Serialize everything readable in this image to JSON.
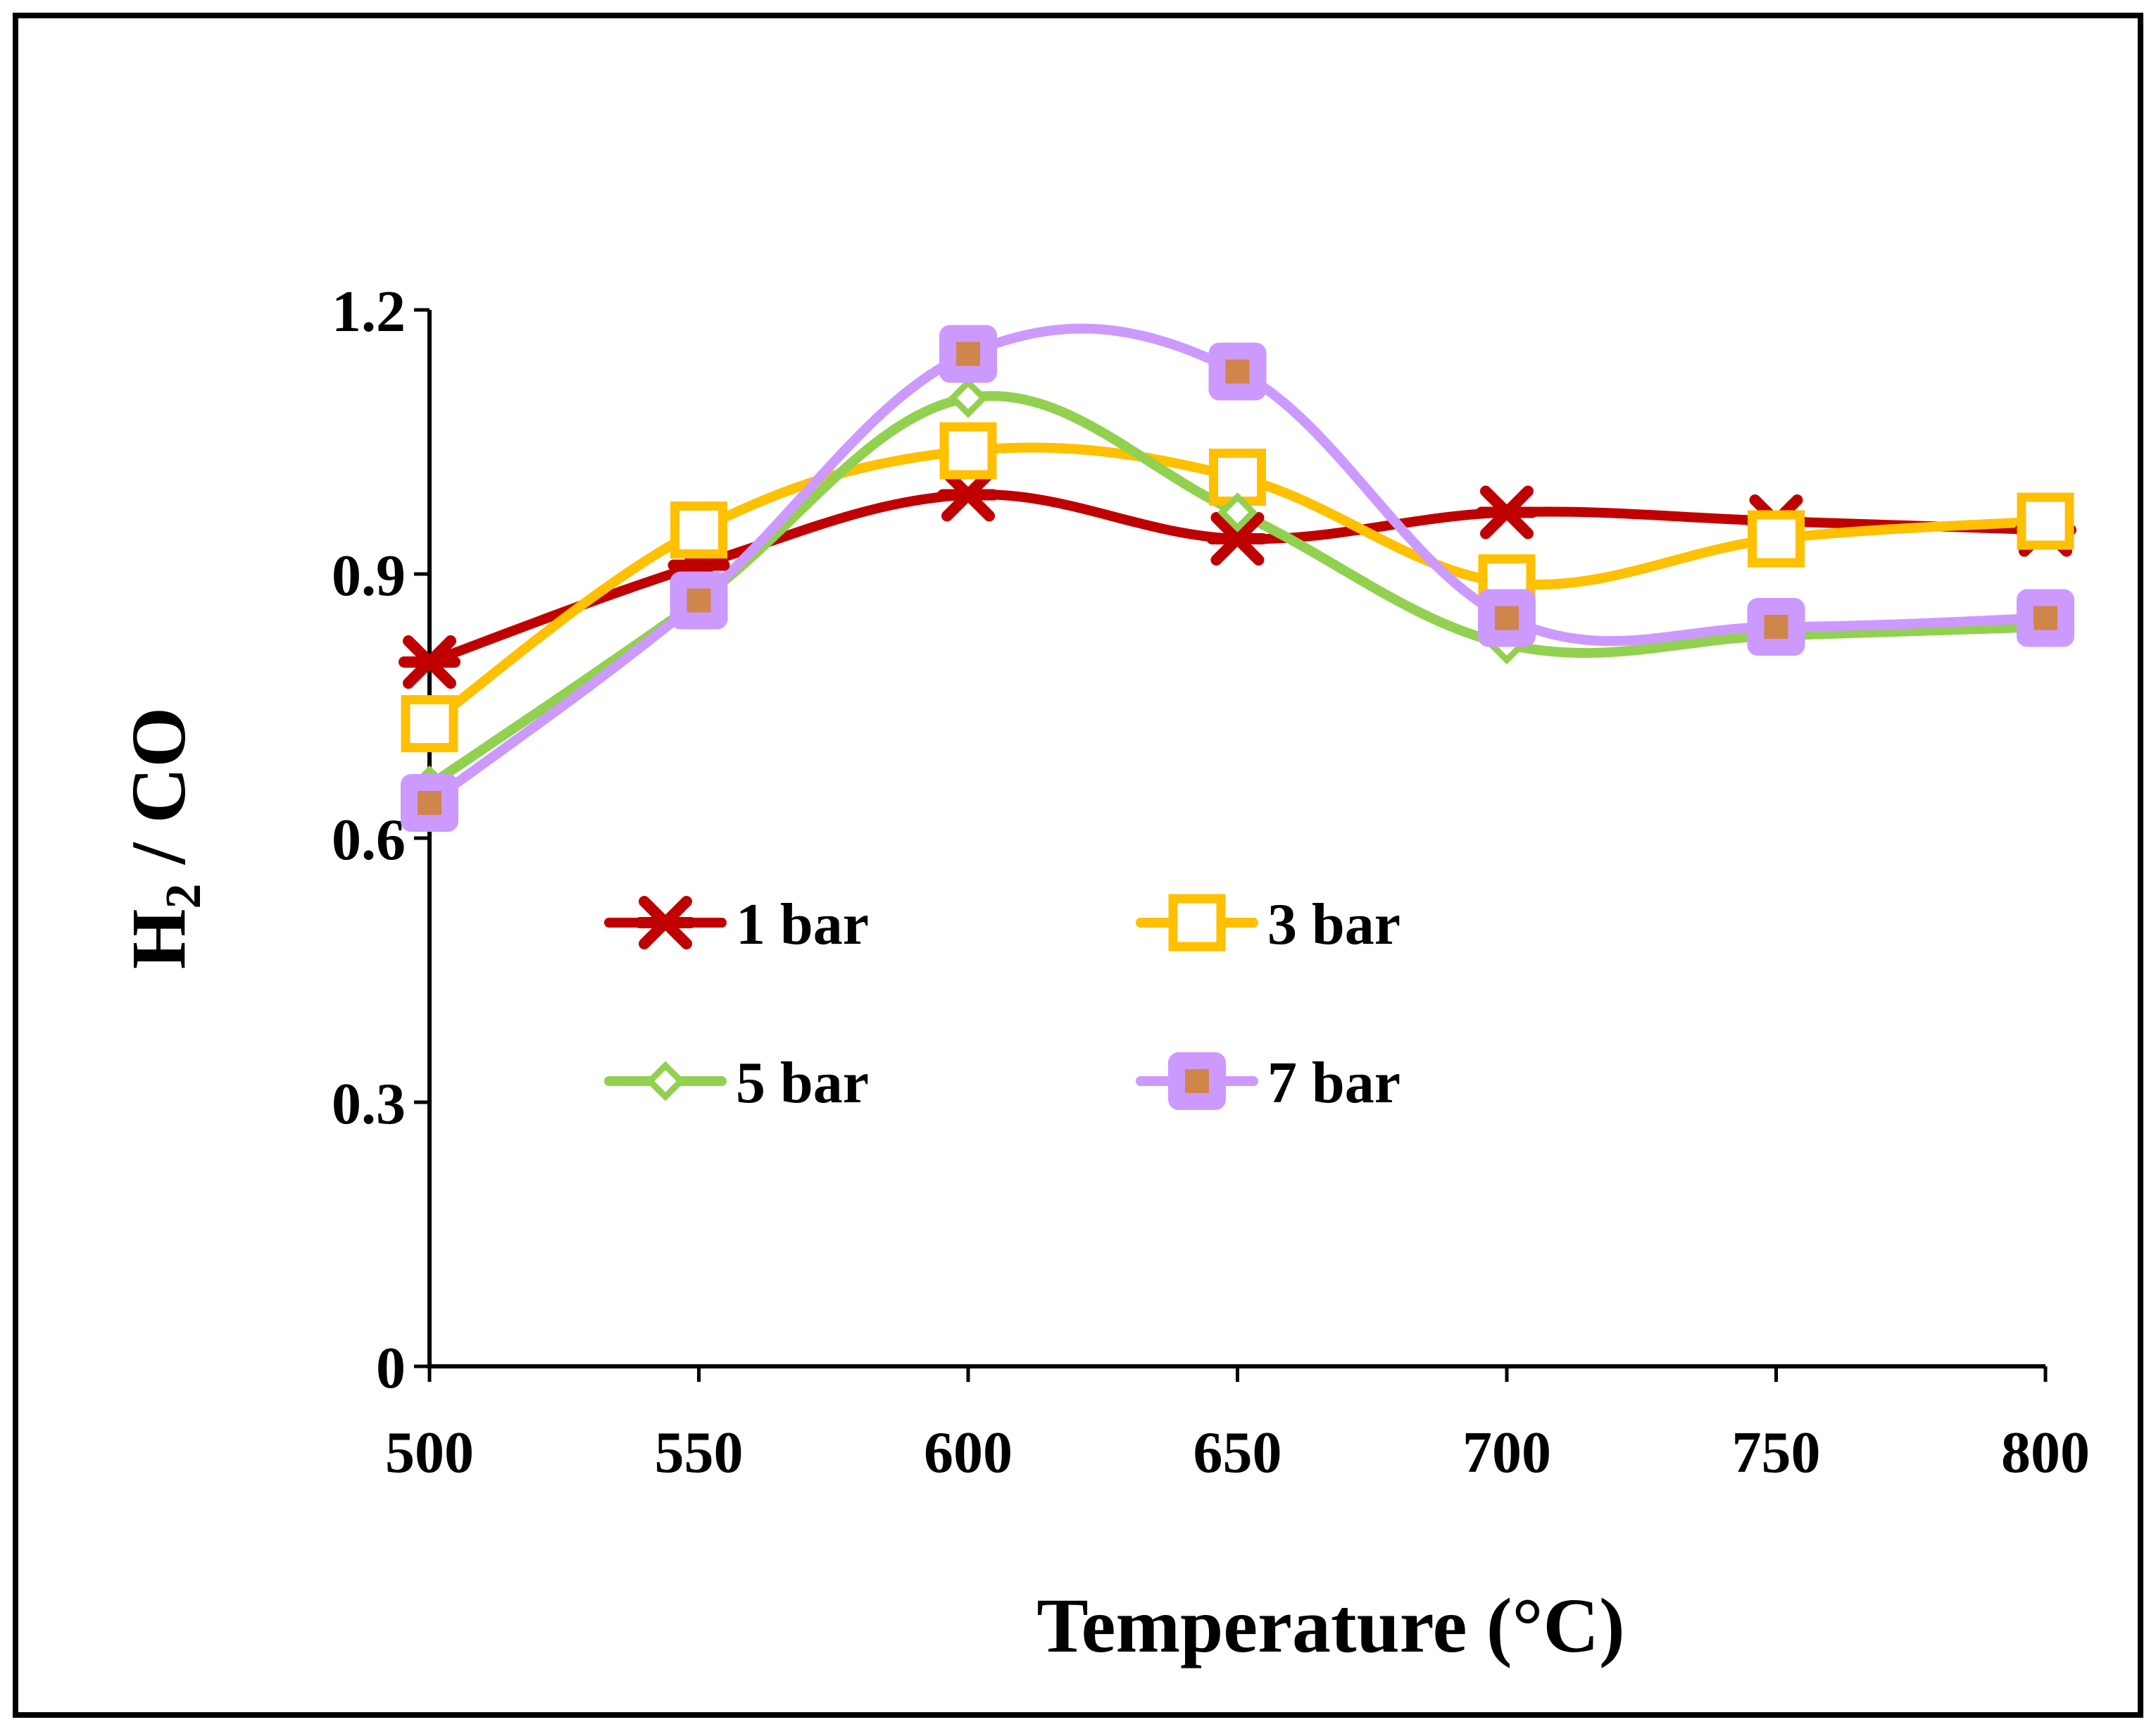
{
  "chart_data": {
    "type": "line",
    "title": "",
    "xlabel": "Temperature (°C)",
    "ylabel_main": "H",
    "ylabel_sub": "2",
    "ylabel_rest": " / CO",
    "x": [
      500,
      550,
      600,
      650,
      700,
      750,
      800
    ],
    "xticks": [
      "500",
      "550",
      "600",
      "650",
      "700",
      "750",
      "800"
    ],
    "yticks": [
      "0",
      "0.3",
      "0.6",
      "0.9",
      "1.2"
    ],
    "xlim": [
      500,
      800
    ],
    "ylim": [
      0,
      1.2
    ],
    "grid": false,
    "legend_position": "inside-middle-left",
    "series": [
      {
        "name": "1 bar",
        "values": [
          0.8,
          0.91,
          0.99,
          0.94,
          0.97,
          0.96,
          0.95
        ],
        "color": "#c00000",
        "marker": "star"
      },
      {
        "name": "3 bar",
        "values": [
          0.73,
          0.95,
          1.04,
          1.01,
          0.89,
          0.94,
          0.96
        ],
        "color": "#ffc000",
        "marker": "square-open"
      },
      {
        "name": "5 bar",
        "values": [
          0.66,
          0.87,
          1.1,
          0.97,
          0.82,
          0.83,
          0.84
        ],
        "color": "#92d050",
        "marker": "diamond-open"
      },
      {
        "name": "7 bar",
        "values": [
          0.64,
          0.87,
          1.15,
          1.13,
          0.85,
          0.84,
          0.85
        ],
        "color": "#cc99ff",
        "marker": "square-filled",
        "marker_fill": "#d0854a"
      }
    ]
  }
}
